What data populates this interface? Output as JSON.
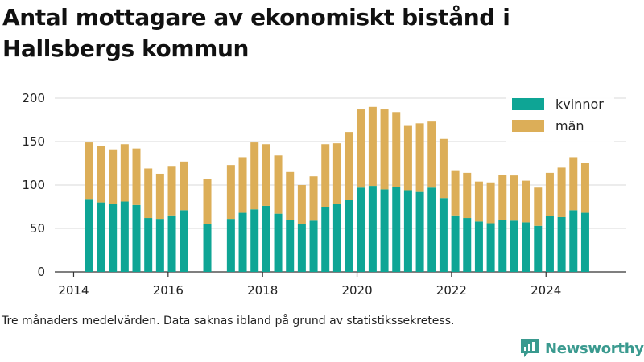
{
  "title": "Antal mottagare av ekonomiskt bistånd i Hallsbergs kommun",
  "footnote": "Tre månaders medelvärden. Data saknas ibland på grund av statistikssekretess.",
  "brand": {
    "name": "Newsworthy",
    "icon": "newsworthy-logo-icon",
    "color": "#3a9a8f"
  },
  "chart_data": {
    "type": "bar",
    "stacked": true,
    "x_unit": "year",
    "ylim": [
      0,
      200
    ],
    "yticks": [
      0,
      50,
      100,
      150,
      200
    ],
    "xlim": [
      2013.6,
      2025.7
    ],
    "xticks": [
      "2014",
      "2016",
      "2018",
      "2020",
      "2022",
      "2024"
    ],
    "grid": true,
    "legend_position": "top-right",
    "series": [
      {
        "name": "kvinnor",
        "color": "#0ea595",
        "x": [
          2014.33,
          2014.58,
          2014.83,
          2015.08,
          2015.33,
          2015.58,
          2015.83,
          2016.08,
          2016.33,
          2016.83,
          2017.33,
          2017.58,
          2017.83,
          2018.08,
          2018.33,
          2018.58,
          2018.83,
          2019.08,
          2019.33,
          2019.58,
          2019.83,
          2020.08,
          2020.33,
          2020.58,
          2020.83,
          2021.08,
          2021.33,
          2021.58,
          2021.83,
          2022.08,
          2022.33,
          2022.58,
          2022.83,
          2023.08,
          2023.33,
          2023.58,
          2023.83,
          2024.08,
          2024.33,
          2024.58,
          2024.83
        ],
        "values": [
          84,
          80,
          78,
          81,
          77,
          62,
          61,
          65,
          71,
          55,
          61,
          68,
          72,
          76,
          67,
          60,
          55,
          59,
          75,
          78,
          83,
          97,
          99,
          95,
          98,
          94,
          92,
          97,
          85,
          65,
          62,
          58,
          56,
          60,
          59,
          57,
          53,
          64,
          63,
          71,
          68
        ]
      },
      {
        "name": "män",
        "color": "#dcae58",
        "x": [
          2014.33,
          2014.58,
          2014.83,
          2015.08,
          2015.33,
          2015.58,
          2015.83,
          2016.08,
          2016.33,
          2016.83,
          2017.33,
          2017.58,
          2017.83,
          2018.08,
          2018.33,
          2018.58,
          2018.83,
          2019.08,
          2019.33,
          2019.58,
          2019.83,
          2020.08,
          2020.33,
          2020.58,
          2020.83,
          2021.08,
          2021.33,
          2021.58,
          2021.83,
          2022.08,
          2022.33,
          2022.58,
          2022.83,
          2023.08,
          2023.33,
          2023.58,
          2023.83,
          2024.08,
          2024.33,
          2024.58,
          2024.83
        ],
        "values": [
          65,
          65,
          63,
          66,
          65,
          57,
          52,
          57,
          56,
          52,
          62,
          64,
          77,
          71,
          67,
          55,
          45,
          51,
          72,
          70,
          78,
          90,
          91,
          92,
          86,
          74,
          79,
          76,
          68,
          52,
          52,
          46,
          47,
          52,
          52,
          48,
          44,
          50,
          57,
          61,
          57
        ]
      }
    ]
  }
}
